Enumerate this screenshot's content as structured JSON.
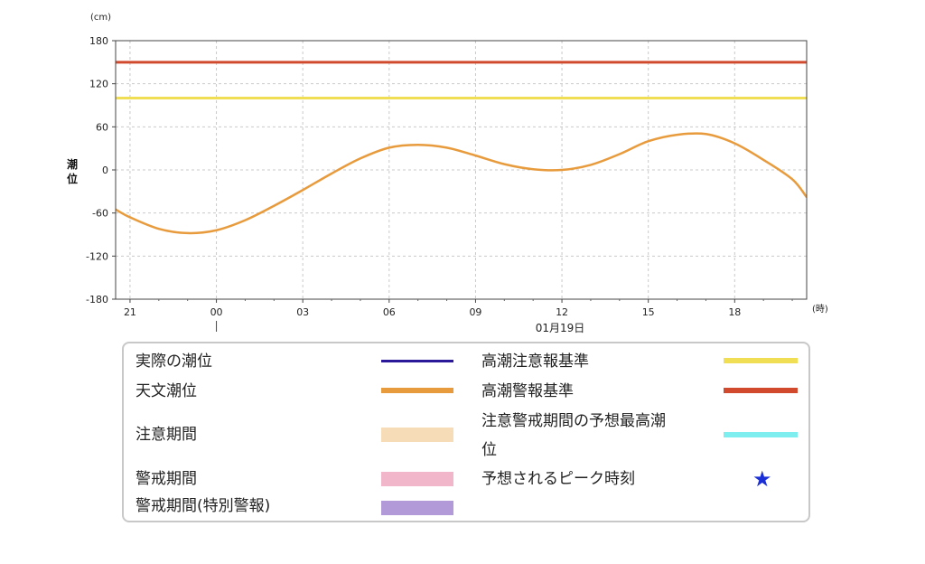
{
  "chart_data": {
    "type": "line",
    "ylabel": "潮位",
    "y_unit": "(cm)",
    "x_unit": "(時)",
    "ylim": [
      -180,
      180
    ],
    "yticks": [
      -180,
      -120,
      -60,
      0,
      60,
      120,
      180
    ],
    "xlim": [
      20.5,
      44.5
    ],
    "xticks": [
      21,
      24,
      27,
      30,
      33,
      36,
      39,
      42
    ],
    "xtick_labels": [
      "21",
      "00",
      "03",
      "06",
      "09",
      "12",
      "15",
      "18"
    ],
    "date_label": "01月19日",
    "date_marker_x": 24,
    "grid": true,
    "series": [
      {
        "name": "天文潮位",
        "color": "#e89b3c",
        "x": [
          20.5,
          21,
          22,
          23,
          24,
          25,
          26,
          27,
          28,
          29,
          30,
          31,
          32,
          33,
          34,
          35,
          36,
          37,
          38,
          39,
          40,
          41,
          42,
          43,
          44,
          44.5
        ],
        "y": [
          -55,
          -66,
          -82,
          -88,
          -84,
          -70,
          -50,
          -28,
          -5,
          16,
          31,
          35,
          31,
          20,
          8,
          1,
          0,
          7,
          22,
          40,
          49,
          50,
          37,
          14,
          -13,
          -38
        ]
      }
    ],
    "reference_lines": [
      {
        "name": "高潮警報基準",
        "value": 150,
        "color": "#d24a2e"
      },
      {
        "name": "高潮注意報基準",
        "value": 100,
        "color": "#f0df55"
      }
    ]
  },
  "legend": {
    "items": [
      {
        "label": "実際の潮位",
        "color": "#2a1a9a",
        "style": "line"
      },
      {
        "label": "天文潮位",
        "color": "#e89b3c",
        "style": "thick-line"
      },
      {
        "label": "注意期間",
        "color": "#f6dcb7",
        "style": "block"
      },
      {
        "label": "警戒期間",
        "color": "#f2b6cb",
        "style": "block"
      },
      {
        "label": "警戒期間(特別警報)",
        "color": "#b29ad8",
        "style": "block"
      },
      {
        "label": "高潮注意報基準",
        "color": "#f0df55",
        "style": "thick-line"
      },
      {
        "label": "高潮警報基準",
        "color": "#d24a2e",
        "style": "thick-line"
      },
      {
        "label_line1": "注意警戒期間の予想最高潮",
        "label_line2": "位",
        "color": "#7eefee",
        "style": "thick-line"
      },
      {
        "label": "予想されるピーク時刻",
        "color": "#1a2fd6",
        "style": "star",
        "symbol": "★"
      }
    ]
  }
}
